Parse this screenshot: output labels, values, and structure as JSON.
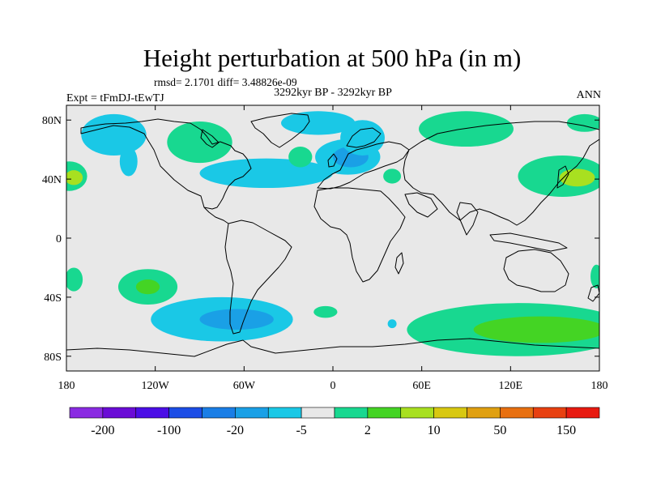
{
  "figure": {
    "title": "Height perturbation at 500 hPa (in m)",
    "stats": "rmsd= 2.1701 diff= 3.48826e-09",
    "period": "3292kyr BP - 3292kyr BP",
    "experiment": "Expt = tFmDJ-tEwTJ",
    "season": "ANN"
  },
  "axes": {
    "lon_ticks": [
      {
        "value": -180,
        "label": "180"
      },
      {
        "value": -120,
        "label": "120W"
      },
      {
        "value": -60,
        "label": "60W"
      },
      {
        "value": 0,
        "label": "0"
      },
      {
        "value": 60,
        "label": "60E"
      },
      {
        "value": 120,
        "label": "120E"
      },
      {
        "value": 180,
        "label": "180"
      }
    ],
    "lat_ticks": [
      {
        "value": 80,
        "label": "80N"
      },
      {
        "value": 40,
        "label": "40N"
      },
      {
        "value": 0,
        "label": "0"
      },
      {
        "value": -40,
        "label": "40S"
      },
      {
        "value": -80,
        "label": "80S"
      }
    ],
    "lon_range": [
      -180,
      180
    ],
    "lat_range": [
      -90,
      90
    ]
  },
  "colorbar": {
    "colors": [
      "#8a2be2",
      "#6a0cd6",
      "#4b0ee6",
      "#1c4de6",
      "#1a7ee6",
      "#1aa0e6",
      "#1ac8e6",
      "#e8e8e8",
      "#18d890",
      "#44d424",
      "#a8e020",
      "#d8c810",
      "#e0a010",
      "#e87010",
      "#e84010",
      "#e81a10"
    ],
    "labels": [
      {
        "text": "-200",
        "edge": 1
      },
      {
        "text": "-100",
        "edge": 3
      },
      {
        "text": "-20",
        "edge": 5
      },
      {
        "text": "-5",
        "edge": 7
      },
      {
        "text": "2",
        "edge": 9
      },
      {
        "text": "10",
        "edge": 11
      },
      {
        "text": "50",
        "edge": 13
      },
      {
        "text": "150",
        "edge": 15
      }
    ]
  },
  "anomalies": [
    {
      "lon": -148,
      "lat": 70,
      "rx": 22,
      "ry": 14,
      "color": "#1ac8e6"
    },
    {
      "lon": -138,
      "lat": 52,
      "rx": 6,
      "ry": 10,
      "color": "#1ac8e6"
    },
    {
      "lon": -90,
      "lat": 65,
      "rx": 22,
      "ry": 14,
      "color": "#18d890"
    },
    {
      "lon": -45,
      "lat": 44,
      "rx": 45,
      "ry": 10,
      "color": "#1ac8e6"
    },
    {
      "lon": -22,
      "lat": 55,
      "rx": 8,
      "ry": 7,
      "color": "#18d890"
    },
    {
      "lon": 10,
      "lat": 55,
      "rx": 22,
      "ry": 12,
      "color": "#1ac8e6"
    },
    {
      "lon": 12,
      "lat": 55,
      "rx": 12,
      "ry": 7,
      "color": "#1aa0e6"
    },
    {
      "lon": 20,
      "lat": 68,
      "rx": 15,
      "ry": 12,
      "color": "#1ac8e6"
    },
    {
      "lon": -10,
      "lat": 78,
      "rx": 25,
      "ry": 8,
      "color": "#1ac8e6"
    },
    {
      "lon": 40,
      "lat": 42,
      "rx": 6,
      "ry": 5,
      "color": "#18d890"
    },
    {
      "lon": 90,
      "lat": 74,
      "rx": 32,
      "ry": 12,
      "color": "#18d890"
    },
    {
      "lon": 170,
      "lat": 78,
      "rx": 12,
      "ry": 6,
      "color": "#18d890"
    },
    {
      "lon": 155,
      "lat": 42,
      "rx": 30,
      "ry": 14,
      "color": "#18d890"
    },
    {
      "lon": 165,
      "lat": 41,
      "rx": 12,
      "ry": 6,
      "color": "#a8e020"
    },
    {
      "lon": -178,
      "lat": 42,
      "rx": 12,
      "ry": 10,
      "color": "#18d890"
    },
    {
      "lon": -175,
      "lat": 41,
      "rx": 6,
      "ry": 5,
      "color": "#a8e020"
    },
    {
      "lon": -175,
      "lat": -28,
      "rx": 6,
      "ry": 8,
      "color": "#18d890"
    },
    {
      "lon": 178,
      "lat": -26,
      "rx": 4,
      "ry": 8,
      "color": "#18d890"
    },
    {
      "lon": -125,
      "lat": -33,
      "rx": 20,
      "ry": 12,
      "color": "#18d890"
    },
    {
      "lon": -125,
      "lat": -33,
      "rx": 8,
      "ry": 5,
      "color": "#44d424"
    },
    {
      "lon": -75,
      "lat": -55,
      "rx": 48,
      "ry": 15,
      "color": "#1ac8e6"
    },
    {
      "lon": -65,
      "lat": -55,
      "rx": 25,
      "ry": 7,
      "color": "#1aa0e6"
    },
    {
      "lon": -5,
      "lat": -50,
      "rx": 8,
      "ry": 4,
      "color": "#18d890"
    },
    {
      "lon": 40,
      "lat": -58,
      "rx": 3,
      "ry": 3,
      "color": "#1ac8e6"
    },
    {
      "lon": 125,
      "lat": -62,
      "rx": 75,
      "ry": 18,
      "color": "#18d890"
    },
    {
      "lon": 140,
      "lat": -62,
      "rx": 45,
      "ry": 9,
      "color": "#44d424"
    }
  ]
}
